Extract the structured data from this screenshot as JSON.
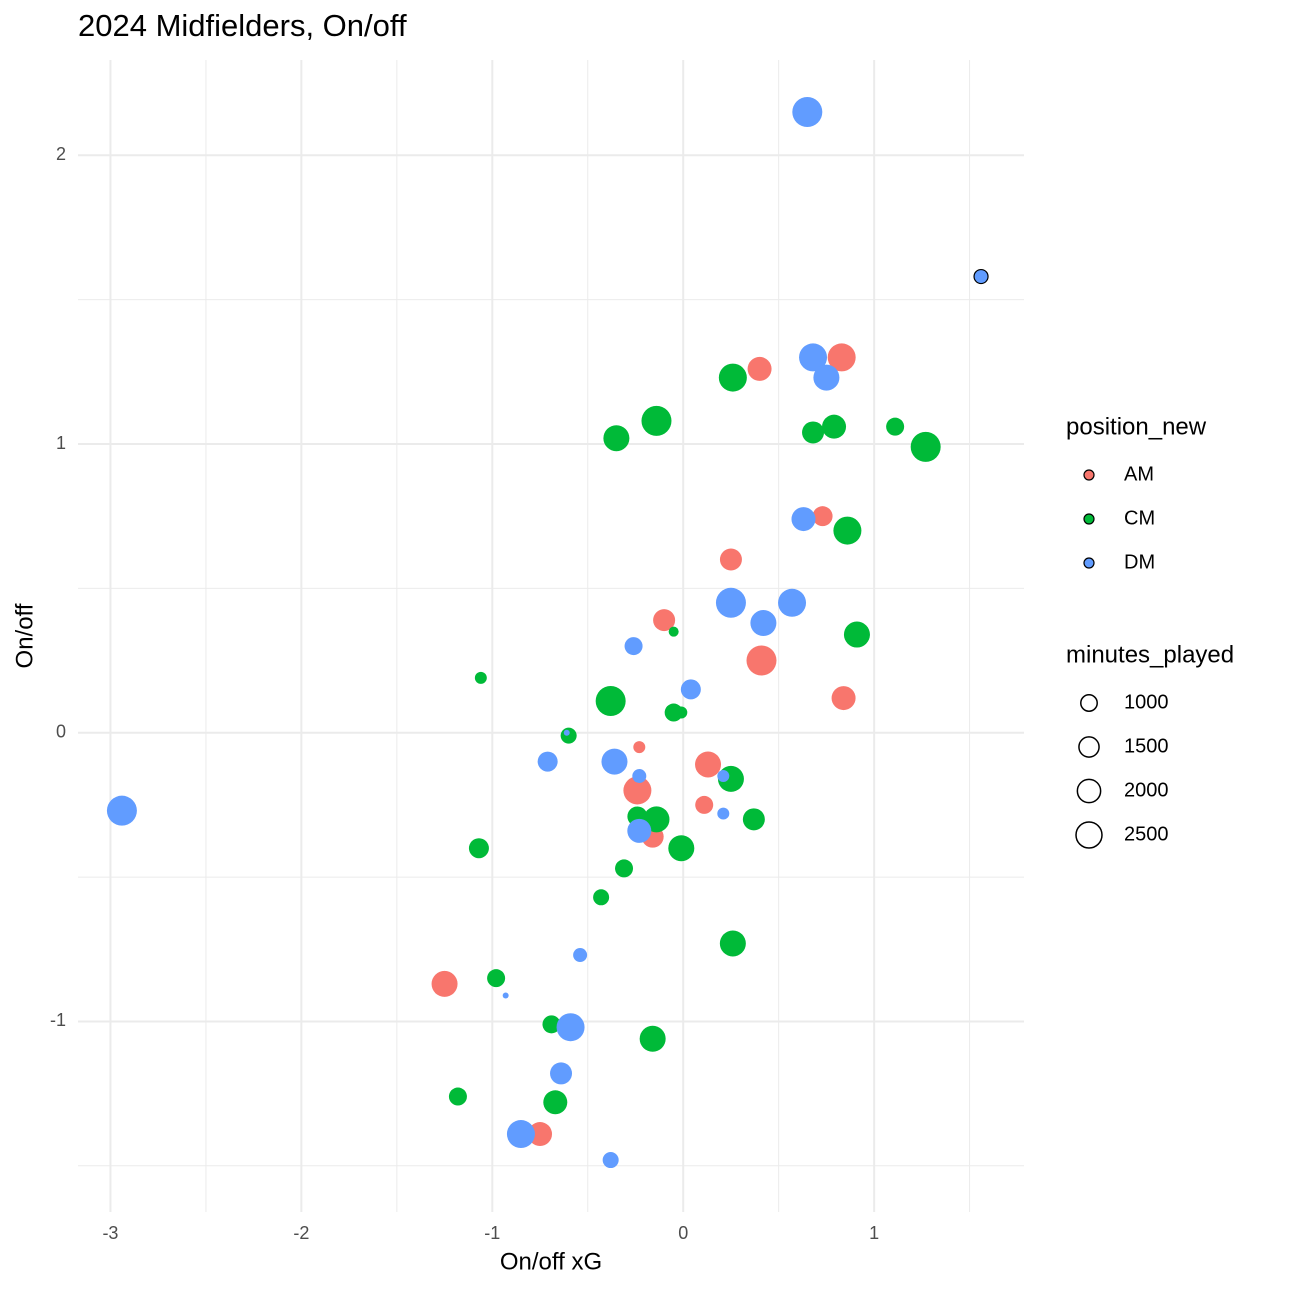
{
  "chart_data": {
    "type": "scatter",
    "title": "2024 Midfielders, On/off",
    "x_label": "On/off xG",
    "y_label": "On/off",
    "xlim": [
      -3.17,
      1.785
    ],
    "ylim": [
      -1.66,
      2.33
    ],
    "xticks": [
      -3,
      -2,
      -1,
      0,
      1
    ],
    "yticks": [
      -1,
      0,
      1,
      2
    ],
    "xminorticks": [
      -2.5,
      -1.5,
      -0.5,
      0.5,
      1.5
    ],
    "yminorticks": [
      -1.5,
      -0.5,
      0.5,
      1.5
    ],
    "grid": true,
    "legend": {
      "color_title": "position_new",
      "size_title": "minutes_played",
      "size_breaks": [
        1000,
        1500,
        2000,
        2500
      ]
    },
    "series": [
      {
        "name": "AM",
        "color": "#F8766D",
        "x": [
          0.4,
          0.83,
          0.73,
          0.25,
          -0.1,
          0.41,
          0.84,
          -0.23,
          0.13,
          -0.24,
          0.11,
          -0.16,
          -1.25,
          -0.75
        ],
        "values": [
          1.26,
          1.3,
          0.75,
          0.6,
          0.39,
          0.25,
          0.12,
          -0.05,
          -0.11,
          -0.2,
          -0.25,
          -0.36,
          -0.87,
          -1.39
        ],
        "sizes": [
          2130,
          2900,
          1480,
          1790,
          1790,
          3328,
          2130,
          530,
          2500,
          2900,
          1200,
          1790,
          2500,
          2130
        ]
      },
      {
        "name": "CM",
        "color": "#00BA38",
        "x": [
          0.26,
          -0.14,
          -0.35,
          0.68,
          0.79,
          1.11,
          1.27,
          0.86,
          -0.05,
          0.91,
          -1.06,
          -0.38,
          -0.05,
          -0.01,
          -0.6,
          0.25,
          -0.24,
          -0.14,
          0.37,
          -0.01,
          -1.07,
          -0.31,
          -0.43,
          0.26,
          -0.98,
          -0.69,
          -0.16,
          -1.18,
          -0.67
        ],
        "values": [
          1.23,
          1.08,
          1.02,
          1.04,
          1.06,
          1.06,
          0.99,
          0.7,
          0.35,
          0.34,
          0.19,
          0.11,
          0.07,
          0.07,
          -0.01,
          -0.16,
          -0.29,
          -0.3,
          -0.3,
          -0.4,
          -0.4,
          -0.47,
          -0.57,
          -0.73,
          -0.85,
          -1.01,
          -1.06,
          -1.26,
          -1.28
        ],
        "sizes": [
          2900,
          3328,
          2500,
          1790,
          2130,
          1200,
          3328,
          2900,
          370,
          2500,
          530,
          3328,
          1200,
          530,
          950,
          2500,
          1480,
          2500,
          1790,
          2500,
          1480,
          1200,
          950,
          2500,
          1200,
          1200,
          2500,
          1200,
          2130
        ]
      },
      {
        "name": "DM",
        "color": "#619CFF",
        "x": [
          0.65,
          1.56,
          0.68,
          0.75,
          0.63,
          0.25,
          0.57,
          0.42,
          -0.26,
          0.04,
          -0.61,
          -0.71,
          -0.36,
          -0.23,
          0.21,
          0.21,
          -0.23,
          -2.94,
          -0.54,
          -0.93,
          -0.59,
          -0.64,
          -0.85,
          -0.38
        ],
        "values": [
          2.15,
          1.58,
          1.3,
          1.23,
          0.74,
          0.45,
          0.45,
          0.38,
          0.3,
          0.15,
          0.0,
          -0.1,
          -0.1,
          -0.15,
          -0.15,
          -0.28,
          -0.34,
          -0.27,
          -0.77,
          -0.91,
          -1.02,
          -1.18,
          -1.39,
          -1.48
        ],
        "sizes": [
          3328,
          725,
          2900,
          2500,
          2130,
          3328,
          2900,
          2500,
          1200,
          1480,
          133,
          1480,
          2500,
          725,
          530,
          530,
          2130,
          3328,
          725,
          133,
          2900,
          1790,
          2900,
          950
        ],
        "outlined": [
          1
        ]
      }
    ]
  }
}
